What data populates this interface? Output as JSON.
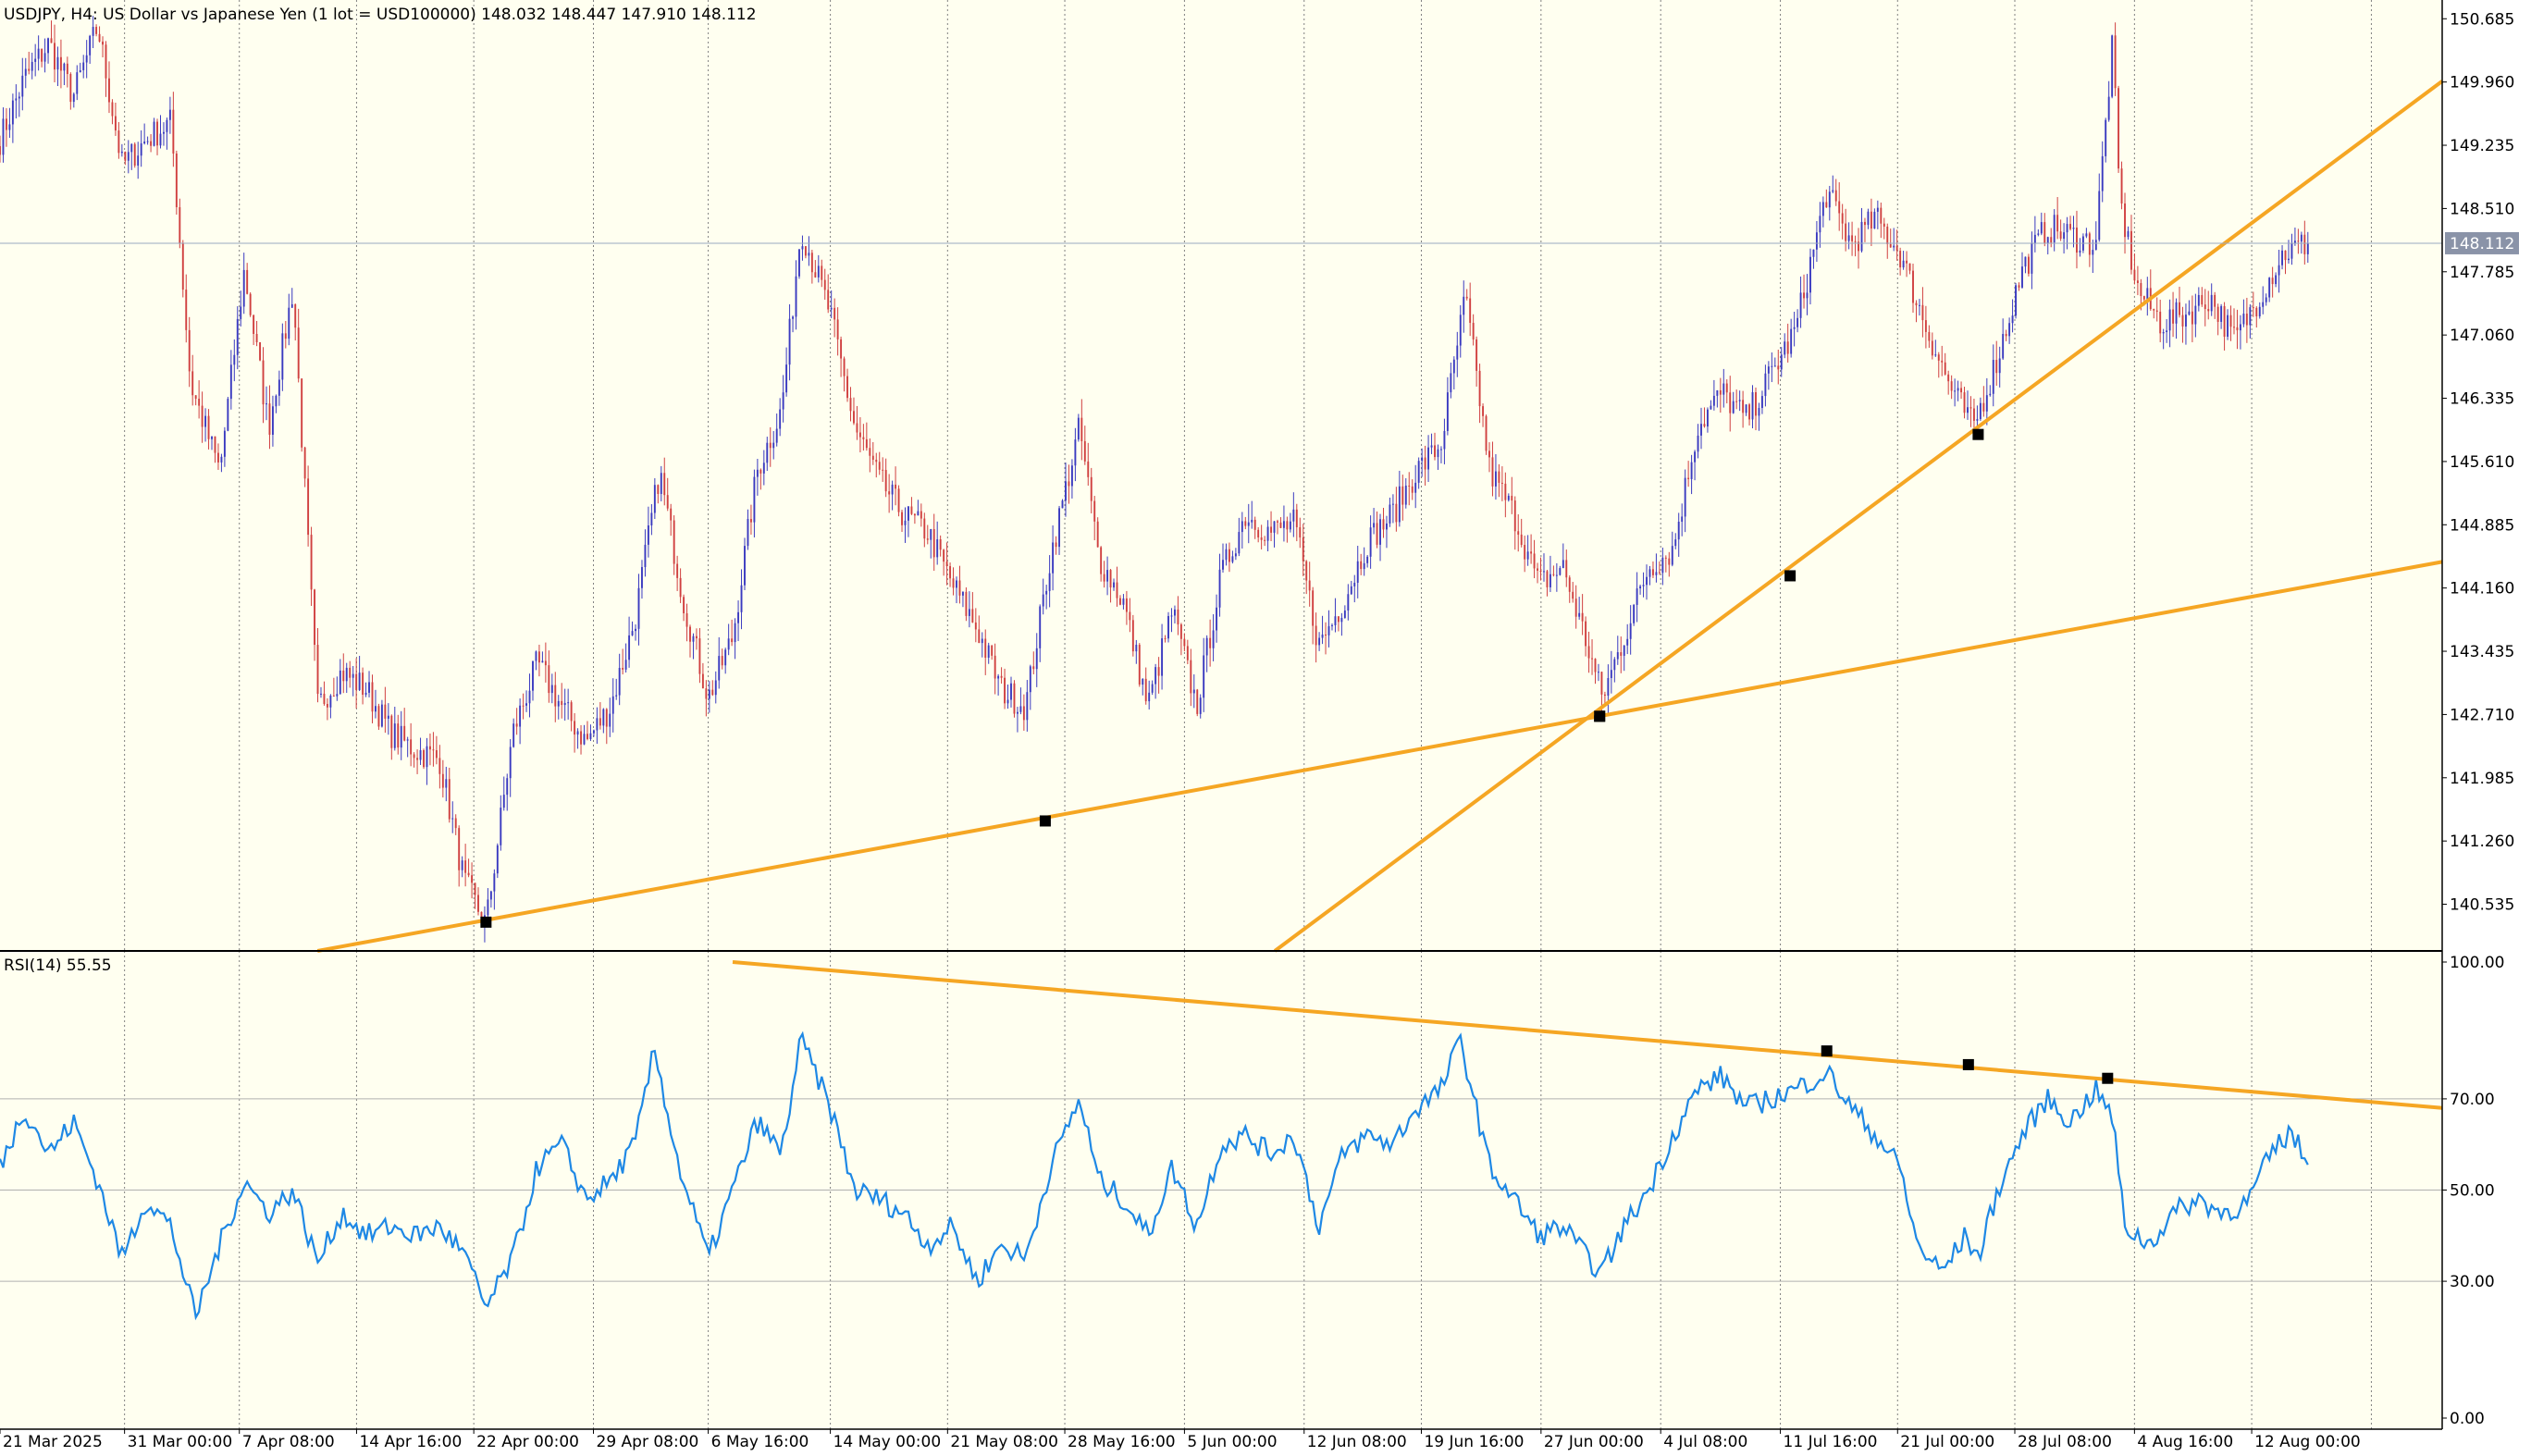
{
  "header": {
    "symbol_line": "USDJPY, H4:  US Dollar vs Japanese Yen (1 lot = USD100000)  148.032 148.447 147.910 148.112"
  },
  "current_price_label": "148.112",
  "rsi_label": "RSI(14) 55.55",
  "colors": {
    "background": "#fffff0",
    "axis_bg": "#ffffff",
    "grid": "#808080",
    "bull": "#3a3ac0",
    "bear": "#d04040",
    "trendline": "#f5a623",
    "rsi_line": "#1e88e5",
    "level_line": "#b0b0b0",
    "price_line": "#9aa8c0",
    "price_tag_bg": "#8a93a8"
  },
  "chart_data": [
    {
      "type": "candlestick",
      "symbol": "USDJPY",
      "timeframe": "H4",
      "ylim": [
        140.0,
        150.9
      ],
      "y_ticks": [
        "150.685",
        "149.960",
        "149.235",
        "148.510",
        "147.785",
        "147.060",
        "146.335",
        "145.610",
        "144.885",
        "144.160",
        "143.435",
        "142.710",
        "141.985",
        "141.260",
        "140.535"
      ],
      "x_labels": [
        "21 Mar 2025",
        "31 Mar 00:00",
        "7 Apr 08:00",
        "14 Apr 16:00",
        "22 Apr 00:00",
        "29 Apr 08:00",
        "6 May 16:00",
        "14 May 00:00",
        "21 May 08:00",
        "28 May 16:00",
        "5 Jun 00:00",
        "12 Jun 08:00",
        "19 Jun 16:00",
        "27 Jun 00:00",
        "4 Jul 08:00",
        "11 Jul 16:00",
        "21 Jul 00:00",
        "28 Jul 08:00",
        "4 Aug 16:00",
        "12 Aug 00:00"
      ],
      "x_label_fractions": [
        0.0,
        0.051,
        0.098,
        0.146,
        0.194,
        0.243,
        0.29,
        0.34,
        0.388,
        0.436,
        0.485,
        0.534,
        0.582,
        0.631,
        0.68,
        0.729,
        0.777,
        0.825,
        0.874,
        0.922
      ],
      "last_ohlc": {
        "open": 148.032,
        "high": 148.447,
        "low": 147.91,
        "close": 148.112
      },
      "close_anchors": [
        [
          0.0,
          149.3
        ],
        [
          0.01,
          150.0
        ],
        [
          0.02,
          150.4
        ],
        [
          0.03,
          149.8
        ],
        [
          0.04,
          150.6
        ],
        [
          0.05,
          149.0
        ],
        [
          0.06,
          149.3
        ],
        [
          0.07,
          149.5
        ],
        [
          0.078,
          146.5
        ],
        [
          0.09,
          145.5
        ],
        [
          0.1,
          147.8
        ],
        [
          0.11,
          146.0
        ],
        [
          0.12,
          147.6
        ],
        [
          0.13,
          142.8
        ],
        [
          0.14,
          143.2
        ],
        [
          0.15,
          143.0
        ],
        [
          0.16,
          142.5
        ],
        [
          0.17,
          142.3
        ],
        [
          0.18,
          142.2
        ],
        [
          0.19,
          140.8
        ],
        [
          0.199,
          140.3
        ],
        [
          0.21,
          142.5
        ],
        [
          0.22,
          143.3
        ],
        [
          0.23,
          142.8
        ],
        [
          0.24,
          142.4
        ],
        [
          0.25,
          142.8
        ],
        [
          0.26,
          143.8
        ],
        [
          0.27,
          145.5
        ],
        [
          0.28,
          144.0
        ],
        [
          0.29,
          142.9
        ],
        [
          0.3,
          143.6
        ],
        [
          0.31,
          145.5
        ],
        [
          0.32,
          146.2
        ],
        [
          0.328,
          148.3
        ],
        [
          0.34,
          147.3
        ],
        [
          0.35,
          146.0
        ],
        [
          0.36,
          145.4
        ],
        [
          0.37,
          145.0
        ],
        [
          0.38,
          144.8
        ],
        [
          0.39,
          144.2
        ],
        [
          0.4,
          143.7
        ],
        [
          0.41,
          143.0
        ],
        [
          0.42,
          142.8
        ],
        [
          0.43,
          144.5
        ],
        [
          0.442,
          146.0
        ],
        [
          0.45,
          144.5
        ],
        [
          0.46,
          144.0
        ],
        [
          0.47,
          142.8
        ],
        [
          0.48,
          143.9
        ],
        [
          0.49,
          142.8
        ],
        [
          0.5,
          144.3
        ],
        [
          0.51,
          145.0
        ],
        [
          0.52,
          144.8
        ],
        [
          0.53,
          144.9
        ],
        [
          0.54,
          143.5
        ],
        [
          0.55,
          144.0
        ],
        [
          0.56,
          144.7
        ],
        [
          0.57,
          145.0
        ],
        [
          0.58,
          145.5
        ],
        [
          0.59,
          145.8
        ],
        [
          0.6,
          147.5
        ],
        [
          0.61,
          145.5
        ],
        [
          0.62,
          145.0
        ],
        [
          0.63,
          144.2
        ],
        [
          0.64,
          144.4
        ],
        [
          0.65,
          143.5
        ],
        [
          0.656,
          142.9
        ],
        [
          0.665,
          143.6
        ],
        [
          0.675,
          144.4
        ],
        [
          0.685,
          144.6
        ],
        [
          0.695,
          146.0
        ],
        [
          0.705,
          146.4
        ],
        [
          0.715,
          146.1
        ],
        [
          0.725,
          146.6
        ],
        [
          0.735,
          147.1
        ],
        [
          0.748,
          148.7
        ],
        [
          0.758,
          148.1
        ],
        [
          0.768,
          148.4
        ],
        [
          0.778,
          148.0
        ],
        [
          0.788,
          147.2
        ],
        [
          0.798,
          146.5
        ],
        [
          0.808,
          146.0
        ],
        [
          0.818,
          146.8
        ],
        [
          0.828,
          147.8
        ],
        [
          0.838,
          148.3
        ],
        [
          0.848,
          148.2
        ],
        [
          0.858,
          148.1
        ],
        [
          0.865,
          150.4
        ],
        [
          0.868,
          148.6
        ],
        [
          0.875,
          147.6
        ],
        [
          0.885,
          147.2
        ],
        [
          0.895,
          147.3
        ],
        [
          0.905,
          147.5
        ],
        [
          0.915,
          147.0
        ],
        [
          0.925,
          147.5
        ],
        [
          0.935,
          148.0
        ],
        [
          0.945,
          148.112
        ]
      ],
      "trendlines": [
        {
          "points": [
            [
              0.13,
              140.0
            ],
            [
              0.199,
              140.33
            ],
            [
              0.428,
              141.49
            ],
            [
              0.655,
              142.69
            ],
            [
              1.0,
              144.46
            ]
          ],
          "markers": [
            1,
            2,
            3
          ]
        },
        {
          "points": [
            [
              0.522,
              140.0
            ],
            [
              0.655,
              142.69
            ],
            [
              0.733,
              144.3
            ],
            [
              0.81,
              145.92
            ],
            [
              1.0,
              149.97
            ]
          ],
          "markers": [
            1,
            2,
            3
          ]
        }
      ]
    },
    {
      "type": "line",
      "indicator": "RSI(14)",
      "last_value": 55.55,
      "ylim": [
        0,
        100
      ],
      "y_ticks": [
        "100.00",
        "70.00",
        "50.00",
        "30.00",
        "0.00"
      ],
      "levels": [
        70,
        50,
        30
      ],
      "series": [
        {
          "anchors": [
            [
              0.0,
              55
            ],
            [
              0.01,
              68
            ],
            [
              0.02,
              58
            ],
            [
              0.03,
              65
            ],
            [
              0.04,
              52
            ],
            [
              0.05,
              35
            ],
            [
              0.06,
              48
            ],
            [
              0.07,
              42
            ],
            [
              0.08,
              22
            ],
            [
              0.09,
              38
            ],
            [
              0.1,
              52
            ],
            [
              0.11,
              45
            ],
            [
              0.12,
              50
            ],
            [
              0.13,
              34
            ],
            [
              0.14,
              45
            ],
            [
              0.15,
              40
            ],
            [
              0.16,
              42
            ],
            [
              0.17,
              40
            ],
            [
              0.18,
              42
            ],
            [
              0.19,
              36
            ],
            [
              0.199,
              24
            ],
            [
              0.21,
              35
            ],
            [
              0.22,
              55
            ],
            [
              0.23,
              60
            ],
            [
              0.24,
              48
            ],
            [
              0.25,
              52
            ],
            [
              0.26,
              60
            ],
            [
              0.268,
              81
            ],
            [
              0.278,
              55
            ],
            [
              0.29,
              35
            ],
            [
              0.3,
              50
            ],
            [
              0.31,
              65
            ],
            [
              0.32,
              58
            ],
            [
              0.328,
              83
            ],
            [
              0.34,
              68
            ],
            [
              0.35,
              50
            ],
            [
              0.36,
              48
            ],
            [
              0.37,
              45
            ],
            [
              0.38,
              38
            ],
            [
              0.39,
              42
            ],
            [
              0.4,
              30
            ],
            [
              0.41,
              38
            ],
            [
              0.42,
              35
            ],
            [
              0.43,
              55
            ],
            [
              0.442,
              70
            ],
            [
              0.45,
              52
            ],
            [
              0.46,
              48
            ],
            [
              0.47,
              40
            ],
            [
              0.48,
              55
            ],
            [
              0.49,
              42
            ],
            [
              0.5,
              60
            ],
            [
              0.51,
              62
            ],
            [
              0.52,
              58
            ],
            [
              0.53,
              62
            ],
            [
              0.54,
              42
            ],
            [
              0.55,
              58
            ],
            [
              0.56,
              62
            ],
            [
              0.57,
              60
            ],
            [
              0.58,
              68
            ],
            [
              0.59,
              72
            ],
            [
              0.598,
              83
            ],
            [
              0.61,
              55
            ],
            [
              0.62,
              48
            ],
            [
              0.63,
              40
            ],
            [
              0.64,
              42
            ],
            [
              0.65,
              35
            ],
            [
              0.656,
              32
            ],
            [
              0.665,
              42
            ],
            [
              0.675,
              50
            ],
            [
              0.685,
              62
            ],
            [
              0.695,
              72
            ],
            [
              0.705,
              75
            ],
            [
              0.715,
              68
            ],
            [
              0.725,
              70
            ],
            [
              0.735,
              72
            ],
            [
              0.748,
              76
            ],
            [
              0.758,
              68
            ],
            [
              0.768,
              62
            ],
            [
              0.778,
              55
            ],
            [
              0.785,
              38
            ],
            [
              0.795,
              32
            ],
            [
              0.805,
              40
            ],
            [
              0.81,
              35
            ],
            [
              0.818,
              50
            ],
            [
              0.828,
              62
            ],
            [
              0.838,
              70
            ],
            [
              0.848,
              65
            ],
            [
              0.858,
              72
            ],
            [
              0.865,
              66
            ],
            [
              0.87,
              42
            ],
            [
              0.88,
              38
            ],
            [
              0.89,
              45
            ],
            [
              0.9,
              48
            ],
            [
              0.91,
              45
            ],
            [
              0.92,
              47
            ],
            [
              0.93,
              58
            ],
            [
              0.938,
              63
            ],
            [
              0.945,
              55.55
            ]
          ]
        }
      ],
      "trendlines": [
        {
          "points": [
            [
              0.3,
              100
            ],
            [
              0.748,
              80.5
            ],
            [
              0.806,
              77.5
            ],
            [
              0.863,
              74.5
            ],
            [
              1.0,
              68
            ]
          ],
          "markers": [
            1,
            2,
            3
          ]
        }
      ]
    }
  ]
}
